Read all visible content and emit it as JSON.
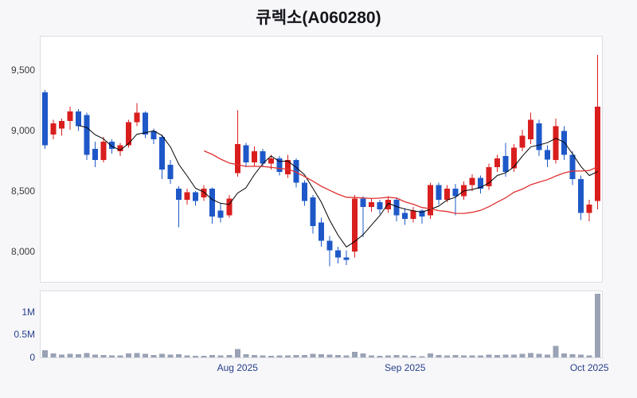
{
  "title": "큐렉소(A060280)",
  "colors": {
    "up": "#d91e1e",
    "down": "#1e58c8",
    "ma_short": "#000000",
    "ma_long": "#e03131",
    "volume_bar": "#9aa2b5",
    "axis_price": "#3a3a3f",
    "axis_volume": "#27408b",
    "axis_time": "#27408b",
    "panel_border": "#dcdde2",
    "panel_bg": "#ffffff",
    "page_bg": "#f7f7f9"
  },
  "chart_data": {
    "type": "candlestick",
    "title": "큐렉소(A060280)",
    "grid": false,
    "legend": "none",
    "price_axis": {
      "side": "left",
      "ylim": [
        7750,
        9780
      ],
      "ticks": [
        {
          "value": 9500,
          "label": "9,500"
        },
        {
          "value": 9000,
          "label": "9,000"
        },
        {
          "value": 8500,
          "label": "8,500"
        },
        {
          "value": 8000,
          "label": "8,000"
        }
      ]
    },
    "volume_axis": {
      "side": "left",
      "ylim": [
        0,
        1450000
      ],
      "ticks": [
        {
          "value": 1000000,
          "label": "1M"
        },
        {
          "value": 500000,
          "label": "0.5M"
        },
        {
          "value": 0,
          "label": "0"
        }
      ]
    },
    "x_axis": {
      "ticks": [
        {
          "index": 23,
          "label": "Aug 2025"
        },
        {
          "index": 43,
          "label": "Sep 2025"
        },
        {
          "index": 65,
          "label": "Oct 2025"
        }
      ]
    },
    "moving_averages": [
      {
        "name": "MA5",
        "window": 5,
        "color_key": "ma_short",
        "width": 1
      },
      {
        "name": "MA20",
        "window": 20,
        "color_key": "ma_long",
        "width": 1.3
      }
    ],
    "columns": [
      "date",
      "open",
      "high",
      "low",
      "close",
      "volume"
    ],
    "candles": [
      [
        "2025-07-01",
        9320,
        9340,
        8850,
        8880,
        160000
      ],
      [
        "2025-07-02",
        8970,
        9090,
        8930,
        9060,
        90000
      ],
      [
        "2025-07-03",
        9020,
        9100,
        8960,
        9080,
        60000
      ],
      [
        "2025-07-04",
        9080,
        9200,
        9010,
        9160,
        80000
      ],
      [
        "2025-07-07",
        9160,
        9180,
        9000,
        9040,
        70000
      ],
      [
        "2025-07-08",
        9130,
        9150,
        8760,
        8800,
        100000
      ],
      [
        "2025-07-09",
        8850,
        8910,
        8700,
        8760,
        60000
      ],
      [
        "2025-07-10",
        8760,
        8950,
        8740,
        8910,
        55000
      ],
      [
        "2025-07-11",
        8910,
        8930,
        8810,
        8850,
        45000
      ],
      [
        "2025-07-14",
        8830,
        8900,
        8790,
        8880,
        40000
      ],
      [
        "2025-07-15",
        8880,
        9090,
        8860,
        9070,
        85000
      ],
      [
        "2025-07-16",
        9070,
        9230,
        9040,
        9150,
        95000
      ],
      [
        "2025-07-17",
        9150,
        9160,
        8940,
        8970,
        80000
      ],
      [
        "2025-07-18",
        9000,
        9020,
        8890,
        8930,
        50000
      ],
      [
        "2025-07-21",
        8950,
        8970,
        8600,
        8680,
        75000
      ],
      [
        "2025-07-22",
        8720,
        8760,
        8560,
        8600,
        60000
      ],
      [
        "2025-07-23",
        8520,
        8540,
        8200,
        8430,
        70000
      ],
      [
        "2025-07-24",
        8430,
        8520,
        8390,
        8490,
        40000
      ],
      [
        "2025-07-25",
        8490,
        8500,
        8380,
        8420,
        35000
      ],
      [
        "2025-07-28",
        8450,
        8550,
        8420,
        8520,
        38000
      ],
      [
        "2025-07-29",
        8520,
        8530,
        8230,
        8290,
        55000
      ],
      [
        "2025-07-30",
        8340,
        8400,
        8240,
        8280,
        45000
      ],
      [
        "2025-07-31",
        8300,
        8470,
        8280,
        8440,
        50000
      ],
      [
        "2025-08-01",
        8650,
        9170,
        8620,
        8890,
        180000
      ],
      [
        "2025-08-04",
        8880,
        8900,
        8700,
        8740,
        70000
      ],
      [
        "2025-08-05",
        8740,
        8870,
        8710,
        8830,
        55000
      ],
      [
        "2025-08-06",
        8830,
        8850,
        8700,
        8730,
        45000
      ],
      [
        "2025-08-07",
        8730,
        8800,
        8680,
        8770,
        35000
      ],
      [
        "2025-08-08",
        8770,
        8790,
        8630,
        8660,
        40000
      ],
      [
        "2025-08-11",
        8640,
        8800,
        8610,
        8760,
        45000
      ],
      [
        "2025-08-12",
        8760,
        8770,
        8530,
        8570,
        50000
      ],
      [
        "2025-08-13",
        8570,
        8590,
        8380,
        8420,
        55000
      ],
      [
        "2025-08-14",
        8450,
        8470,
        8150,
        8210,
        80000
      ],
      [
        "2025-08-18",
        8240,
        8280,
        8040,
        8090,
        70000
      ],
      [
        "2025-08-19",
        8090,
        8130,
        7880,
        8010,
        65000
      ],
      [
        "2025-08-20",
        8010,
        8040,
        7900,
        7950,
        50000
      ],
      [
        "2025-08-21",
        7950,
        8010,
        7890,
        7930,
        45000
      ],
      [
        "2025-08-22",
        8000,
        8470,
        7950,
        8440,
        120000
      ],
      [
        "2025-08-25",
        8440,
        8460,
        8120,
        8370,
        90000
      ],
      [
        "2025-08-26",
        8370,
        8440,
        8330,
        8410,
        40000
      ],
      [
        "2025-08-27",
        8410,
        8430,
        8310,
        8350,
        35000
      ],
      [
        "2025-08-28",
        8350,
        8460,
        8320,
        8430,
        45000
      ],
      [
        "2025-08-29",
        8430,
        8450,
        8250,
        8300,
        50000
      ],
      [
        "2025-09-01",
        8320,
        8360,
        8220,
        8270,
        40000
      ],
      [
        "2025-09-02",
        8270,
        8370,
        8240,
        8340,
        35000
      ],
      [
        "2025-09-03",
        8340,
        8350,
        8230,
        8290,
        30000
      ],
      [
        "2025-09-04",
        8300,
        8570,
        8270,
        8550,
        85000
      ],
      [
        "2025-09-05",
        8550,
        8570,
        8390,
        8430,
        55000
      ],
      [
        "2025-09-08",
        8430,
        8550,
        8410,
        8520,
        45000
      ],
      [
        "2025-09-09",
        8520,
        8560,
        8300,
        8460,
        50000
      ],
      [
        "2025-09-10",
        8460,
        8580,
        8430,
        8550,
        40000
      ],
      [
        "2025-09-11",
        8550,
        8640,
        8500,
        8610,
        45000
      ],
      [
        "2025-09-12",
        8610,
        8630,
        8480,
        8520,
        40000
      ],
      [
        "2025-09-15",
        8540,
        8730,
        8510,
        8700,
        60000
      ],
      [
        "2025-09-16",
        8700,
        8800,
        8660,
        8770,
        55000
      ],
      [
        "2025-09-17",
        8790,
        8900,
        8620,
        8660,
        65000
      ],
      [
        "2025-09-18",
        8690,
        8890,
        8660,
        8860,
        60000
      ],
      [
        "2025-09-19",
        8860,
        9010,
        8830,
        8960,
        75000
      ],
      [
        "2025-09-22",
        8930,
        9150,
        8890,
        9090,
        95000
      ],
      [
        "2025-09-23",
        9060,
        9090,
        8790,
        8840,
        80000
      ],
      [
        "2025-09-24",
        8840,
        8880,
        8700,
        8760,
        60000
      ],
      [
        "2025-09-25",
        8760,
        9100,
        8730,
        9040,
        250000
      ],
      [
        "2025-09-26",
        9000,
        9040,
        8760,
        8800,
        90000
      ],
      [
        "2025-09-29",
        8800,
        8830,
        8550,
        8600,
        70000
      ],
      [
        "2025-09-30",
        8600,
        8630,
        8260,
        8320,
        60000
      ],
      [
        "2025-10-01",
        8320,
        8430,
        8250,
        8390,
        45000
      ],
      [
        "2025-10-02",
        8420,
        9630,
        8350,
        9200,
        1400000
      ]
    ]
  }
}
